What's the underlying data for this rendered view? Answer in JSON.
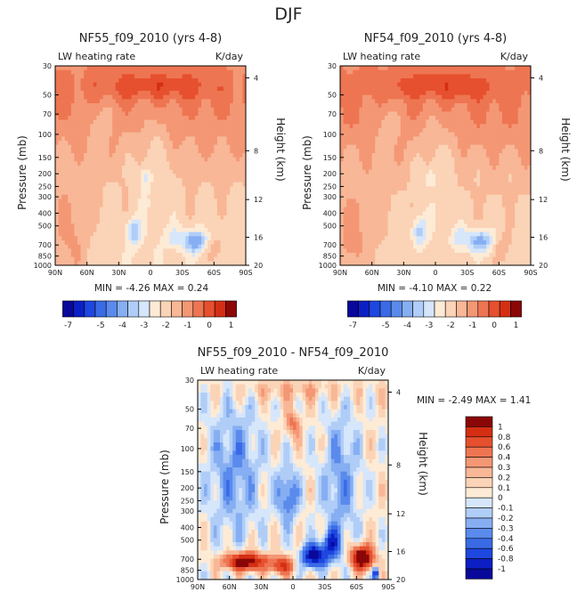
{
  "page_title": "DJF",
  "colors": {
    "neg": [
      "#08089a",
      "#0c1fc4",
      "#1e47e0",
      "#3a6ae6",
      "#5a8aec",
      "#86aef2",
      "#b0cdf7",
      "#d6e6fb"
    ],
    "pos": [
      "#fdebd6",
      "#fbd3b6",
      "#f8b796",
      "#f49774",
      "#ee7552",
      "#e6502f",
      "#d42f13",
      "#ad1707",
      "#8b0707"
    ]
  },
  "chart_data": [
    {
      "type": "heatmap",
      "name": "panel-nf55",
      "title": "NF55_f09_2010 (yrs 4-8)",
      "subtitle_left": "LW heating rate",
      "subtitle_right": "K/day",
      "xlabel": "",
      "ylabel": "Pressure (mb)",
      "ylabel_right": "Height (km)",
      "x_ticks": [
        "90N",
        "60N",
        "30N",
        "0",
        "30S",
        "60S",
        "90S"
      ],
      "y_ticks": [
        "30",
        "50",
        "70",
        "100",
        "150",
        "200",
        "250",
        "300",
        "400",
        "500",
        "700",
        "850",
        "1000"
      ],
      "y_ticks_right": [
        "20",
        "16",
        "12",
        "8",
        "4"
      ],
      "ylim": [
        1000,
        30
      ],
      "stats": "MIN =   -4.26   MAX =    0.24",
      "min": -4.26,
      "max": 0.24
    },
    {
      "type": "heatmap",
      "name": "panel-nf54",
      "title": "NF54_f09_2010 (yrs 4-8)",
      "subtitle_left": "LW heating rate",
      "subtitle_right": "K/day",
      "xlabel": "",
      "ylabel": "Pressure (mb)",
      "ylabel_right": "Height (km)",
      "x_ticks": [
        "90N",
        "60N",
        "30N",
        "0",
        "30S",
        "60S",
        "90S"
      ],
      "y_ticks": [
        "30",
        "50",
        "70",
        "100",
        "150",
        "200",
        "250",
        "300",
        "400",
        "500",
        "700",
        "850",
        "1000"
      ],
      "y_ticks_right": [
        "20",
        "16",
        "12",
        "8",
        "4"
      ],
      "ylim": [
        1000,
        30
      ],
      "stats": "MIN =   -4.10   MAX =    0.22",
      "min": -4.1,
      "max": 0.22
    },
    {
      "type": "heatmap",
      "name": "panel-diff",
      "title": "NF55_f09_2010 - NF54_f09_2010",
      "subtitle_left": "LW heating rate",
      "subtitle_right": "K/day",
      "xlabel": "",
      "ylabel": "Pressure (mb)",
      "ylabel_right": "Height (km)",
      "x_ticks": [
        "90N",
        "60N",
        "30N",
        "0",
        "30S",
        "60S",
        "90S"
      ],
      "y_ticks": [
        "30",
        "50",
        "70",
        "100",
        "150",
        "200",
        "250",
        "300",
        "400",
        "500",
        "700",
        "850",
        "1000"
      ],
      "y_ticks_right": [
        "20",
        "16",
        "12",
        "8",
        "4"
      ],
      "ylim": [
        1000,
        30
      ],
      "stats": "MIN =   -2.49   MAX =    1.41",
      "min": -2.49,
      "max": 1.41
    }
  ],
  "colorbar_top": {
    "labels": [
      "-7",
      "-5",
      "-4",
      "-3",
      "-2",
      "-1",
      "0",
      "1"
    ],
    "label_boxes": [
      0,
      3,
      5,
      7,
      9,
      11,
      13,
      15
    ]
  },
  "colorbar_diff": {
    "labels": [
      "1",
      "0.8",
      "0.6",
      "0.4",
      "0.3",
      "0.2",
      "0.1",
      "0",
      "-0.1",
      "-0.2",
      "-0.3",
      "-0.4",
      "-0.6",
      "-0.8",
      "-1"
    ]
  }
}
